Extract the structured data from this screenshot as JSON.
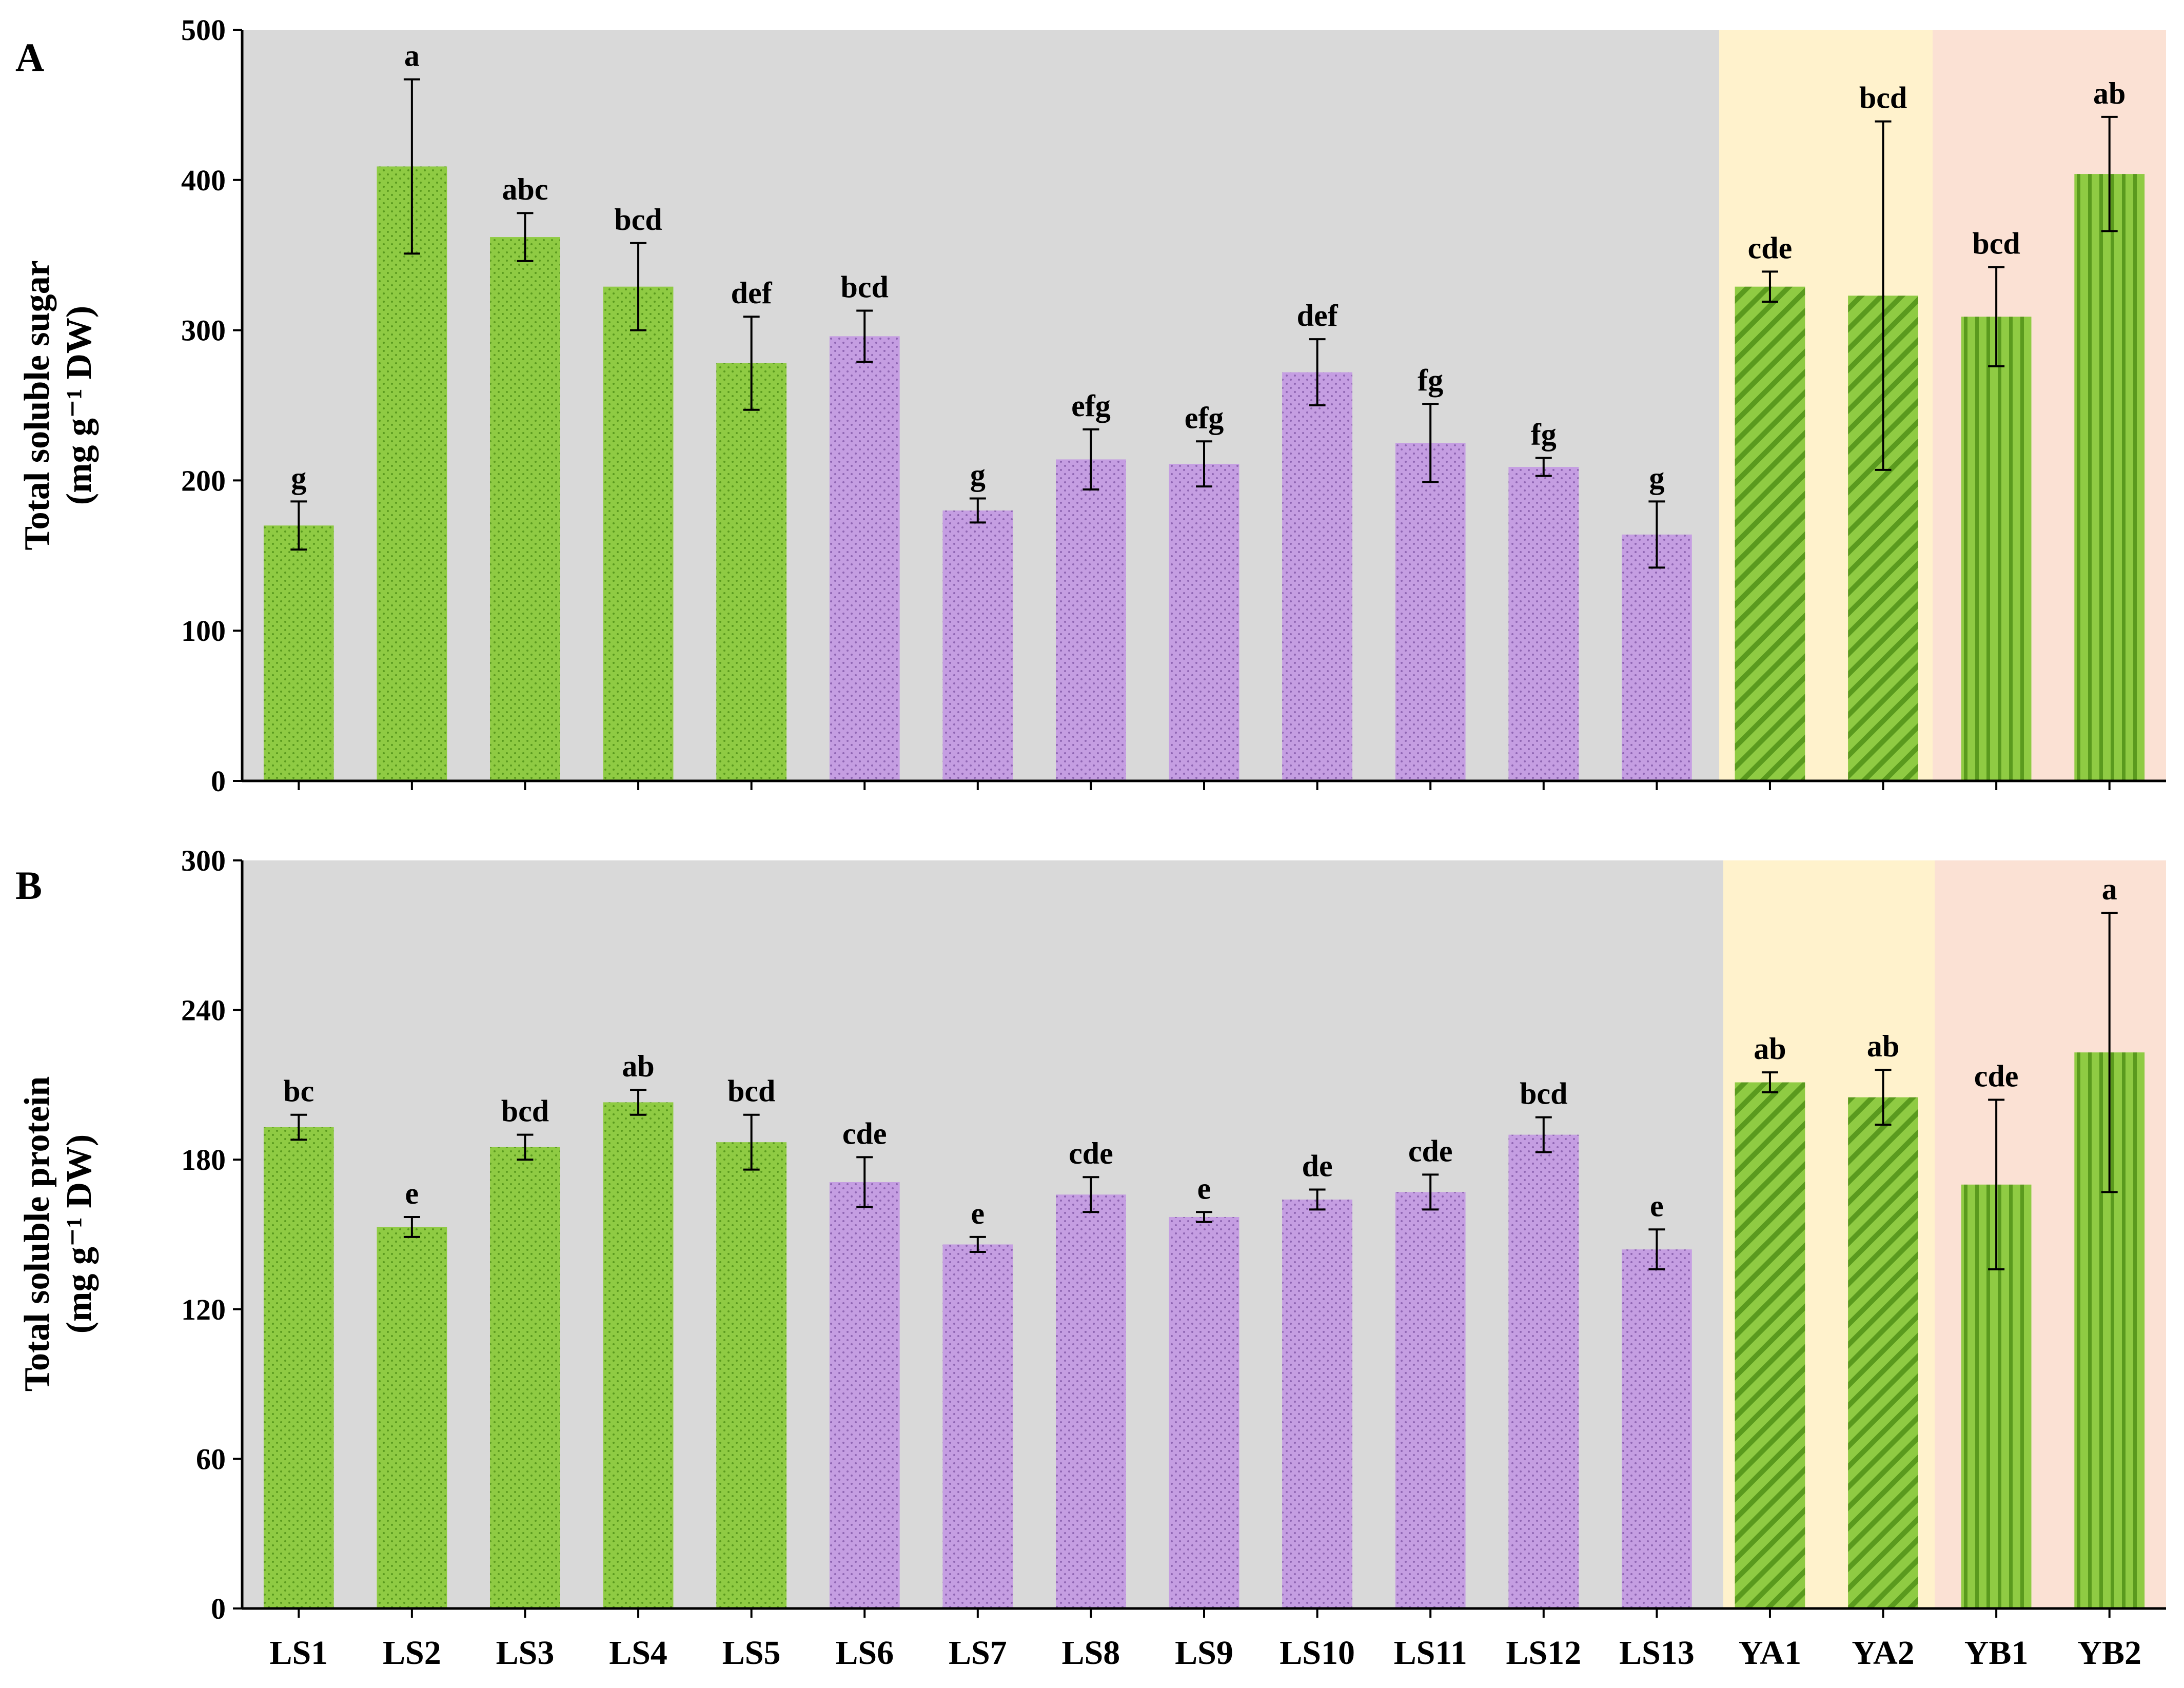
{
  "colors": {
    "green": "#8fcb43",
    "green_stroke": "#5a9a1e",
    "purple": "#c59ee2",
    "purple_stroke": "#8f66b3",
    "bg_LS": "#d9d9d9",
    "bg_YA": "#fff2cc",
    "bg_YB": "#fbe1d4"
  },
  "chart_data": [
    {
      "type": "bar",
      "panel_label": "A",
      "ylabel_line1": "Total soluble sugar",
      "ylabel_line2": "(mg g⁻¹ DW)",
      "ylim": [
        0,
        500
      ],
      "yticks": [
        "0",
        "100",
        "200",
        "300",
        "400",
        "500"
      ],
      "categories": [
        "LS1",
        "LS2",
        "LS3",
        "LS4",
        "LS5",
        "LS6",
        "LS7",
        "LS8",
        "LS9",
        "LS10",
        "LS11",
        "LS12",
        "LS13",
        "YA1",
        "YA2",
        "YB1",
        "YB2"
      ],
      "series": [
        {
          "name": "Total soluble sugar",
          "values": [
            170,
            409,
            362,
            329,
            278,
            296,
            180,
            214,
            211,
            272,
            225,
            209,
            164,
            329,
            323,
            309,
            404
          ],
          "errors": [
            16,
            58,
            16,
            29,
            31,
            17,
            8,
            20,
            15,
            22,
            26,
            6,
            22,
            10,
            116,
            33,
            38
          ],
          "letters": [
            "g",
            "a",
            "abc",
            "bcd",
            "def",
            "bcd",
            "g",
            "efg",
            "efg",
            "def",
            "fg",
            "fg",
            "g",
            "cde",
            "bcd",
            "bcd",
            "ab"
          ]
        }
      ]
    },
    {
      "type": "bar",
      "panel_label": "B",
      "ylabel_line1": "Total soluble protein",
      "ylabel_line2": "(mg g⁻¹ DW)",
      "ylim": [
        0,
        300
      ],
      "yticks": [
        "0",
        "60",
        "120",
        "180",
        "240",
        "300"
      ],
      "categories": [
        "LS1",
        "LS2",
        "LS3",
        "LS4",
        "LS5",
        "LS6",
        "LS7",
        "LS8",
        "LS9",
        "LS10",
        "LS11",
        "LS12",
        "LS13",
        "YA1",
        "YA2",
        "YB1",
        "YB2"
      ],
      "series": [
        {
          "name": "Total soluble protein",
          "values": [
            193,
            153,
            185,
            203,
            187,
            171,
            146,
            166,
            157,
            164,
            167,
            190,
            144,
            211,
            205,
            170,
            223
          ],
          "errors": [
            5,
            4,
            5,
            5,
            11,
            10,
            3,
            7,
            2,
            4,
            7,
            7,
            8,
            4,
            11,
            34,
            56
          ],
          "letters": [
            "bc",
            "e",
            "bcd",
            "ab",
            "bcd",
            "cde",
            "e",
            "cde",
            "e",
            "de",
            "cde",
            "bcd",
            "e",
            "ab",
            "ab",
            "cde",
            "a"
          ]
        }
      ]
    }
  ]
}
